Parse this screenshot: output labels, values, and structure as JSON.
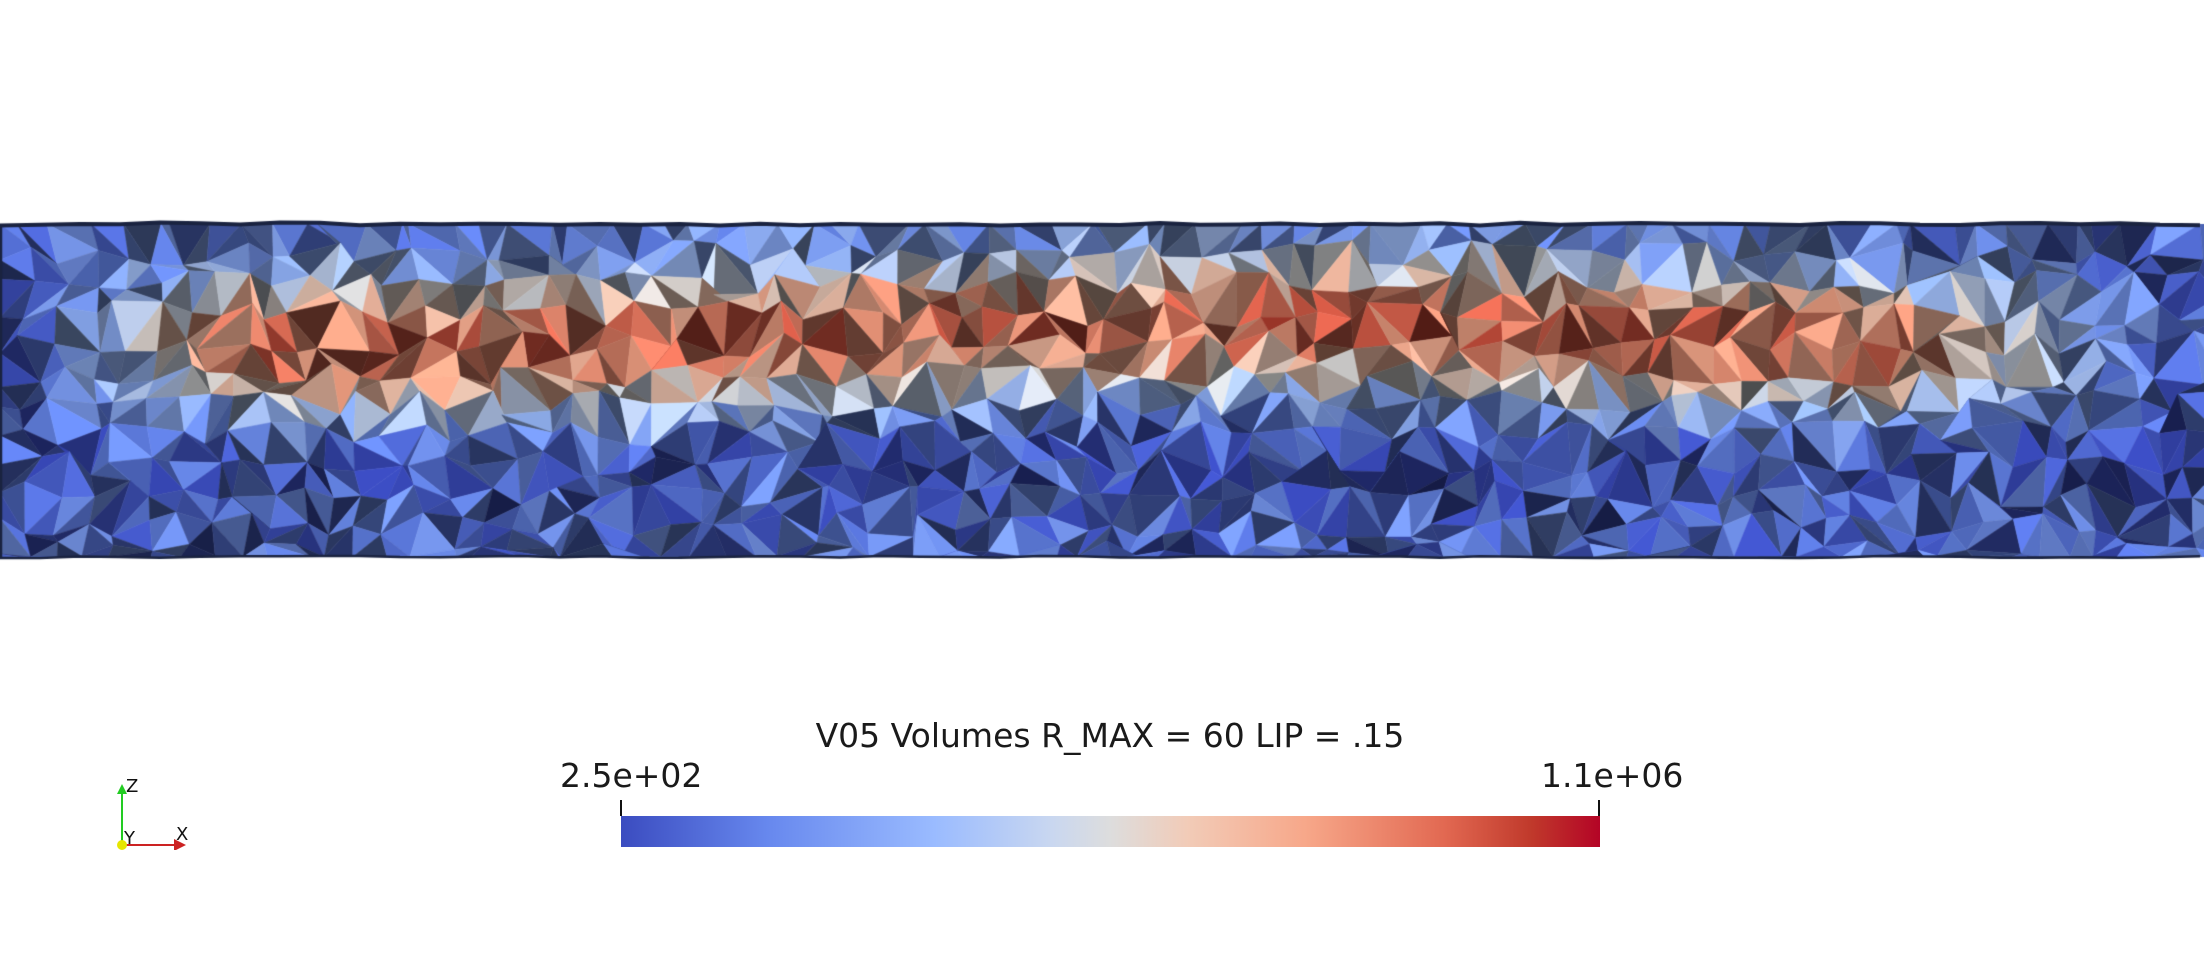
{
  "render": {
    "scalar_name": "V05 Volumes R_MAX = 60 LIP = .15",
    "colormap": "cool-to-warm",
    "background_color": "#ffffff",
    "mesh_outline_color": "#1a2340"
  },
  "legend": {
    "title": "V05 Volumes R_MAX = 60 LIP = .15",
    "min_label": "2.5e+02",
    "max_label": "1.1e+06",
    "colors": [
      "#3b4cc0",
      "#9abbff",
      "#dddddd",
      "#f7a789",
      "#b40426"
    ]
  },
  "axes": {
    "z_label": "Z",
    "y_label": "Y",
    "x_label": "X",
    "z_color": "#22cc22",
    "y_color": "#e6e600",
    "x_color": "#cc2222"
  }
}
